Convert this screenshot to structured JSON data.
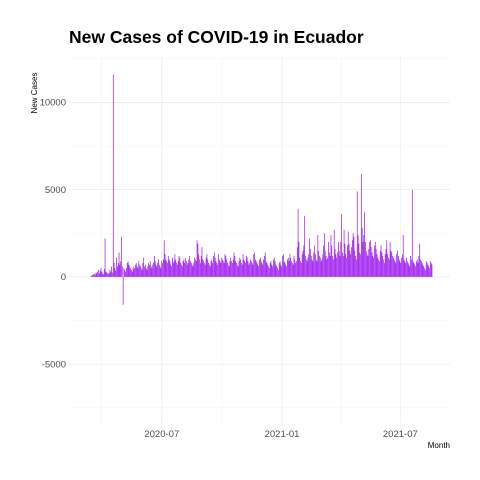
{
  "chart_data": {
    "type": "bar",
    "title": "New Cases of COVID-19 in Ecuador",
    "xlabel": "Month",
    "ylabel": "New Cases",
    "x_start": "2020-03-01",
    "x_end": "2021-08-31",
    "xlim": [
      "2020-02-10",
      "2021-09-15"
    ],
    "ylim": [
      -8600,
      12600
    ],
    "x_ticks": [
      {
        "date": "2020-07-01",
        "label": "2020-07"
      },
      {
        "date": "2021-01-01",
        "label": "2021-01"
      },
      {
        "date": "2021-07-01",
        "label": "2021-07"
      }
    ],
    "y_ticks": [
      {
        "value": 10000,
        "label": "10000"
      },
      {
        "value": 5000,
        "label": "5000"
      },
      {
        "value": 0,
        "label": "0"
      },
      {
        "value": -5000,
        "label": "-5000"
      }
    ],
    "bar_color": "#a020f0",
    "grid": true,
    "legend": "none",
    "series": [
      {
        "values": [
          0,
          0,
          0,
          0,
          0,
          0,
          0,
          0,
          0,
          0,
          0,
          50,
          80,
          120,
          150,
          180,
          120,
          250,
          200,
          300,
          400,
          180,
          350,
          500,
          300,
          200,
          150,
          450,
          2200,
          300,
          250,
          200,
          180,
          220,
          400,
          300,
          600,
          250,
          11600,
          800,
          500,
          350,
          1100,
          600,
          800,
          1400,
          700,
          900,
          2300,
          600,
          -1600,
          500,
          400,
          300,
          500,
          800,
          900,
          700,
          600,
          500,
          400,
          300,
          450,
          600,
          500,
          700,
          800,
          600,
          500,
          900,
          700,
          600,
          500,
          400,
          800,
          1100,
          600,
          700,
          500,
          400,
          600,
          800,
          700,
          900,
          600,
          500,
          700,
          800,
          1200,
          900,
          700,
          600,
          800,
          1000,
          700,
          600,
          500,
          900,
          800,
          1000,
          2100,
          1300,
          1000,
          900,
          800,
          1200,
          1000,
          900,
          700,
          600,
          1100,
          800,
          900,
          1300,
          1000,
          800,
          700,
          900,
          1200,
          1100,
          800,
          700,
          600,
          900,
          1000,
          800,
          1100,
          900,
          700,
          800,
          1000,
          1200,
          900,
          800,
          700,
          600,
          800,
          1100,
          1000,
          900,
          2100,
          1900,
          1300,
          1000,
          800,
          1200,
          1700,
          1000,
          900,
          800,
          700,
          1100,
          1300,
          1000,
          800,
          700,
          600,
          900,
          1000,
          800,
          1200,
          1400,
          1100,
          900,
          800,
          700,
          1300,
          1000,
          900,
          800,
          1100,
          1000,
          900,
          800,
          1300,
          1200,
          1000,
          800,
          700,
          600,
          900,
          1100,
          900,
          800,
          1000,
          1400,
          1200,
          900,
          800,
          700,
          600,
          900,
          1100,
          1000,
          800,
          700,
          1300,
          1000,
          900,
          800,
          1200,
          1100,
          900,
          700,
          800,
          1000,
          900,
          800,
          700,
          1300,
          1400,
          1000,
          900,
          800,
          700,
          600,
          1000,
          1100,
          900,
          800,
          700,
          1000,
          1200,
          1400,
          900,
          800,
          700,
          600,
          500,
          800,
          900,
          700,
          600,
          1000,
          1100,
          900,
          700,
          600,
          500,
          400,
          800,
          900,
          700,
          600,
          1200,
          1300,
          900,
          800,
          700,
          600,
          1000,
          1100,
          900,
          1300,
          1100,
          900,
          800,
          700,
          1200,
          1000,
          800,
          900,
          1700,
          3900,
          2000,
          1100,
          900,
          800,
          1300,
          1500,
          1800,
          3500,
          1200,
          1000,
          900,
          1100,
          1300,
          2200,
          1600,
          1200,
          1000,
          900,
          1400,
          1800,
          1300,
          1000,
          900,
          2400,
          1500,
          1200,
          1100,
          900,
          1000,
          1300,
          1800,
          2500,
          1500,
          1200,
          1000,
          1100,
          2000,
          1400,
          1200,
          2400,
          1800,
          1200,
          1000,
          2700,
          1600,
          1300,
          1100,
          1400,
          2000,
          1500,
          1200,
          2000,
          3600,
          1400,
          1200,
          2700,
          1900,
          1300,
          1100,
          1800,
          2600,
          1900,
          1500,
          1300,
          1700,
          2100,
          2500,
          2300,
          1500,
          1200,
          1000,
          4900,
          2400,
          1900,
          1400,
          1300,
          5900,
          2800,
          2000,
          2400,
          3700,
          2000,
          1500,
          1300,
          1200,
          1600,
          2000,
          2100,
          1700,
          1400,
          1200,
          1100,
          1800,
          2000,
          1600,
          1300,
          1100,
          1000,
          900,
          1500,
          1800,
          1400,
          1200,
          1000,
          800,
          1300,
          1600,
          2100,
          1300,
          1100,
          1000,
          2000,
          1500,
          1400,
          1200,
          1100,
          1000,
          900,
          800,
          1300,
          1500,
          1200,
          1000,
          900,
          800,
          1100,
          1300,
          2400,
          1000,
          900,
          800,
          1100,
          900,
          800,
          700,
          600,
          1200,
          1000,
          5000,
          900,
          800,
          700,
          600,
          900,
          1000,
          800,
          1200,
          1900,
          1000,
          900,
          800,
          700,
          600,
          500,
          400,
          900,
          800,
          700,
          600,
          500,
          900,
          800,
          700,
          0,
          0,
          0,
          0,
          0,
          0,
          0,
          0,
          0,
          0
        ]
      }
    ]
  }
}
